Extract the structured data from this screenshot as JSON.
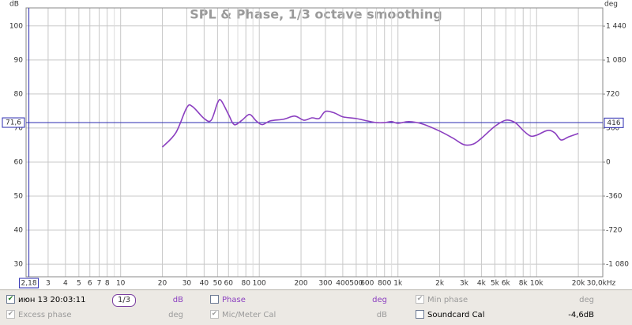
{
  "chart_data": {
    "type": "line",
    "title": "SPL & Phase, 1/3 octave smoothing",
    "y_unit": "dB",
    "y2_unit": "deg",
    "x": [
      20,
      25,
      30,
      33,
      40,
      45,
      50,
      53,
      60,
      66,
      75,
      85,
      95,
      105,
      120,
      150,
      180,
      210,
      240,
      270,
      300,
      350,
      400,
      500,
      600,
      700,
      800,
      900,
      1000,
      1200,
      1500,
      2000,
      2500,
      3000,
      3500,
      4000,
      5000,
      6000,
      7000,
      8000,
      9000,
      10000,
      12000,
      13500,
      15000,
      17000,
      20000
    ],
    "series": [
      {
        "name": "июн 13 20:03:11",
        "color": "#8b3fc0",
        "values": [
          64.4,
          68.6,
          76.0,
          76.3,
          72.8,
          72.3,
          77.4,
          78.1,
          74.0,
          71.0,
          72.3,
          74.0,
          72.1,
          71.0,
          72.1,
          72.6,
          73.5,
          72.3,
          73.0,
          72.8,
          74.9,
          74.4,
          73.3,
          72.8,
          72.1,
          71.6,
          71.6,
          71.9,
          71.4,
          71.9,
          71.2,
          69.1,
          67.0,
          65.1,
          65.3,
          67.0,
          70.5,
          72.3,
          71.6,
          69.3,
          67.7,
          67.9,
          69.3,
          68.6,
          66.5,
          67.4,
          68.4
        ]
      }
    ],
    "log_x": true,
    "xlim": [
      2.08,
      30000
    ],
    "xticks": [
      3,
      4,
      5,
      6,
      7,
      8,
      10,
      20,
      30,
      40,
      50,
      60,
      80,
      100,
      200,
      300,
      400,
      500,
      600,
      800,
      {
        "value": 1000,
        "label": "1k"
      },
      {
        "value": 2000,
        "label": "2k"
      },
      {
        "value": 3000,
        "label": "3k"
      },
      {
        "value": 4000,
        "label": "4k"
      },
      {
        "value": 5000,
        "label": "5k"
      },
      {
        "value": 6000,
        "label": "6k"
      },
      {
        "value": 8000,
        "label": "8k"
      },
      {
        "value": 10000,
        "label": "10k"
      },
      {
        "value": 20000,
        "label": "20k"
      },
      {
        "value": 30000,
        "label": "30,0kHz"
      }
    ],
    "xminor": [
      9,
      70,
      90,
      700,
      900,
      7000,
      9000
    ],
    "ylim": [
      26.3,
      105.3
    ],
    "yticks": [
      30,
      40,
      50,
      60,
      70,
      80,
      90,
      100
    ],
    "y2lim": [
      -1214,
      1633
    ],
    "y2ticks": [
      {
        "value": -1080,
        "label": "-1 080"
      },
      -720,
      -360,
      0,
      360,
      720,
      {
        "value": 1080,
        "label": "1 080"
      },
      {
        "value": 1440,
        "label": "1 440"
      }
    ],
    "grid": true,
    "cursor": {
      "x": {
        "value": 2.18,
        "label": "2,18"
      },
      "y": {
        "value": 71.6,
        "label": "71,6"
      },
      "y2": 416,
      "color": "#2b2bb0"
    }
  },
  "legend_bar": {
    "smoothing": "1/3",
    "items": [
      {
        "label": "июн 13 20:03:11",
        "unit": "dB",
        "checked": true,
        "enabled": true,
        "color": "#000000",
        "unit_color": "#8b3fc0"
      },
      {
        "label": "Phase",
        "unit": "deg",
        "checked": false,
        "enabled": true,
        "color": "#8b3fc0",
        "unit_color": "#8b3fc0"
      },
      {
        "label": "Min phase",
        "unit": "deg",
        "checked": true,
        "enabled": false,
        "color": "#9a9a9a",
        "unit_color": "#9a9a9a"
      },
      {
        "label": "Excess phase",
        "unit": "deg",
        "checked": true,
        "enabled": false,
        "color": "#9a9a9a",
        "unit_color": "#9a9a9a"
      },
      {
        "label": "Mic/Meter Cal",
        "unit": "dB",
        "checked": true,
        "enabled": false,
        "color": "#9a9a9a",
        "unit_color": "#9a9a9a"
      },
      {
        "label": "Soundcard Cal",
        "unit": "-4,6dB",
        "checked": false,
        "enabled": true,
        "color": "#000000",
        "unit_color": "#000000"
      }
    ]
  }
}
